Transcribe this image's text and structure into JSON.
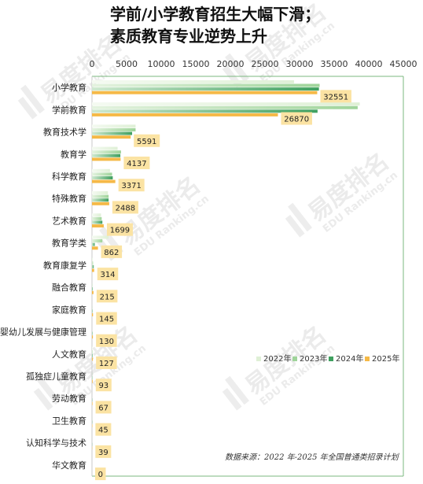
{
  "title": {
    "line1": "学前/小学教育招生大幅下滑；",
    "line2": "素质教育专业逆势上升"
  },
  "watermark": {
    "brand": "易度排名",
    "sub": "EDU Ranking.cn"
  },
  "source_note": "数据来源：2022 年-2025 年全国普通类招录计划",
  "colors": {
    "s2022": "#dff0d6",
    "s2023": "#9fd49a",
    "s2024": "#3fa05f",
    "s2025": "#f5b947",
    "label_bg": "#fbe3a3",
    "frame": "#7bb87f"
  },
  "chart_data": {
    "type": "bar",
    "orientation": "horizontal",
    "title": "学前/小学教育招生大幅下滑；素质教育专业逆势上升",
    "xlim": [
      0,
      45000
    ],
    "xticks": [
      0,
      5000,
      10000,
      15000,
      20000,
      25000,
      30000,
      35000,
      40000,
      45000
    ],
    "legend_position": "bottom-right",
    "grid": false,
    "categories": [
      "小学教育",
      "学前教育",
      "教育技术学",
      "教育学",
      "科学教育",
      "特殊教育",
      "艺术教育",
      "教育学类",
      "教育康复学",
      "融合教育",
      "家庭教育",
      "婴幼儿发展与健康管理",
      "人文教育",
      "孤独症儿童教育",
      "劳动教育",
      "卫生教育",
      "认知科学与技术",
      "华文教育"
    ],
    "series": [
      {
        "name": "2022年",
        "values": [
          29200,
          38700,
          6300,
          3700,
          2600,
          2300,
          1300,
          2400,
          100,
          0,
          0,
          0,
          60,
          0,
          0,
          0,
          0,
          0
        ]
      },
      {
        "name": "2023年",
        "values": [
          32900,
          38400,
          6300,
          4200,
          2900,
          2400,
          1400,
          1500,
          150,
          40,
          20,
          0,
          80,
          20,
          0,
          10,
          0,
          0
        ]
      },
      {
        "name": "2024年",
        "values": [
          32800,
          32600,
          5800,
          4100,
          3000,
          2400,
          1500,
          400,
          250,
          100,
          80,
          80,
          100,
          50,
          30,
          30,
          20,
          0
        ]
      },
      {
        "name": "2025年",
        "values": [
          32551,
          26870,
          5591,
          4137,
          3371,
          2488,
          1699,
          862,
          314,
          215,
          145,
          130,
          127,
          93,
          67,
          45,
          39,
          0
        ]
      }
    ],
    "data_labels": [
      "32551",
      "26870",
      "5591",
      "4137",
      "3371",
      "2488",
      "1699",
      "862",
      "314",
      "215",
      "145",
      "130",
      "127",
      "93",
      "67",
      "45",
      "39",
      "0"
    ]
  }
}
